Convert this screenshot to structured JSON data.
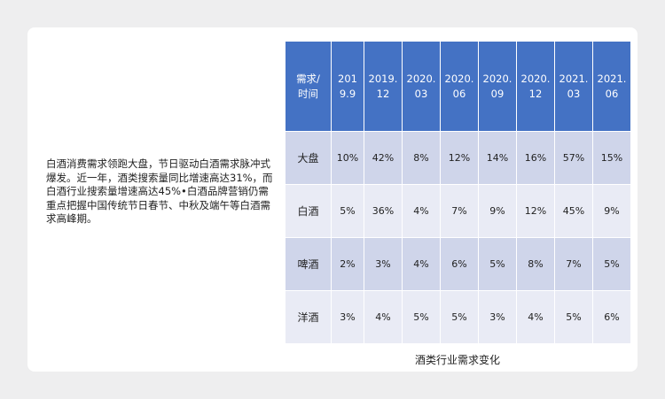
{
  "description": "白酒消费需求领跑大盘，节日驱动白酒需求脉冲式爆发。近一年，酒类搜索量同比增速高达31%，而白酒行业搜索量增速高达45%•白酒品牌营销仍需重点把握中国传统节日春节、中秋及端午等白酒需求高峰期。",
  "table": {
    "corner": [
      "需求/",
      "时间"
    ],
    "columns": [
      [
        "201",
        "9.9"
      ],
      [
        "2019.",
        "12"
      ],
      [
        "2020.",
        "03"
      ],
      [
        "2020.",
        "06"
      ],
      [
        "2020.",
        "09"
      ],
      [
        "2020.",
        "12"
      ],
      [
        "2021.",
        "03"
      ],
      [
        "2021.",
        "06"
      ]
    ],
    "rows": [
      {
        "label": "大盘",
        "values": [
          "10%",
          "42%",
          "8%",
          "12%",
          "14%",
          "16%",
          "57%",
          "15%"
        ]
      },
      {
        "label": "白酒",
        "values": [
          "5%",
          "36%",
          "4%",
          "7%",
          "9%",
          "12%",
          "45%",
          "9%"
        ]
      },
      {
        "label": "啤酒",
        "values": [
          "2%",
          "3%",
          "4%",
          "6%",
          "5%",
          "8%",
          "7%",
          "5%"
        ]
      },
      {
        "label": "洋酒",
        "values": [
          "3%",
          "4%",
          "5%",
          "5%",
          "3%",
          "4%",
          "5%",
          "6%"
        ]
      }
    ]
  },
  "caption": "酒类行业需求变化",
  "colors": {
    "header": "#4472c4",
    "row_odd": "#cfd5ea",
    "row_even": "#e9ebf5",
    "background": "#eeeeef"
  }
}
